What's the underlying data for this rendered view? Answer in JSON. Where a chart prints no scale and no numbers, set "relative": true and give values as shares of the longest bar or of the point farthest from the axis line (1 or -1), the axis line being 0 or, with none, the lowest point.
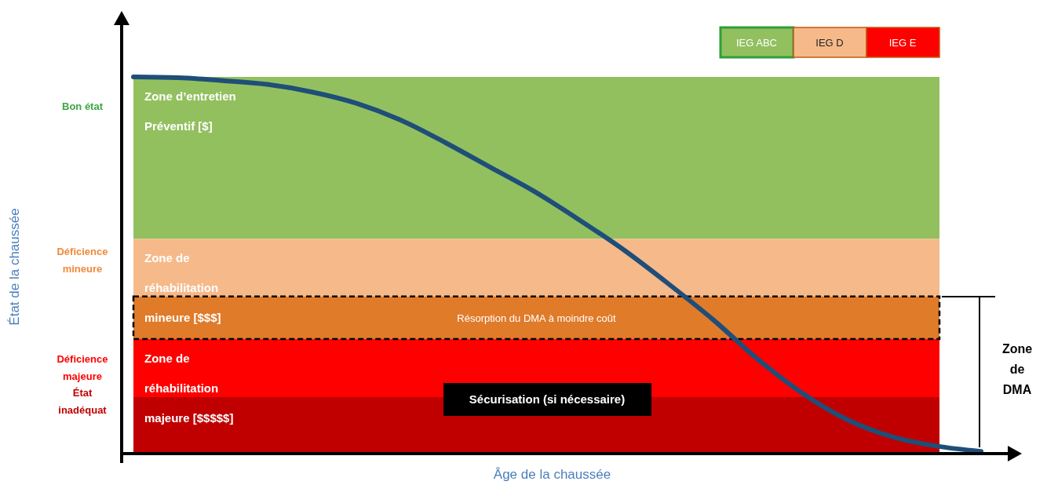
{
  "chart_data": {
    "type": "line",
    "relative": true,
    "xlabel": "Âge de la chaussée",
    "categories": [
      null,
      null,
      null,
      null,
      null,
      null,
      null,
      null,
      null,
      null,
      null,
      null,
      null,
      null,
      null,
      null,
      null,
      null,
      null,
      null
    ],
    "series": [
      {
        "color": "#1f4e79",
        "values": [
          1.0,
          0.998,
          0.99,
          0.98,
          0.96,
          0.93,
          0.885,
          0.825,
          0.76,
          0.695,
          0.62,
          0.54,
          0.45,
          0.355,
          0.25,
          0.16,
          0.09,
          0.045,
          0.02,
          0.006
        ]
      }
    ],
    "bands": [
      {
        "axis": "y",
        "from": 0.57,
        "to": 1.0,
        "label": "Zone d’entretien Préventif [$]",
        "color": "#92c05f"
      },
      {
        "axis": "y",
        "from": 0.417,
        "to": 0.57,
        "label": "Zone de réhabilitation mineure [$$$]",
        "color": "#f6b98a"
      },
      {
        "axis": "y",
        "from": 0.304,
        "to": 0.417,
        "label": "Résorption du DMA à moindre coût",
        "color": "#e07b2a"
      },
      {
        "axis": "y",
        "from": 0.15,
        "to": 0.304,
        "label": "Zone de réhabilitation majeure [$$$$$]",
        "color": "#ff0000"
      },
      {
        "axis": "y",
        "from": 0.0,
        "to": 0.15,
        "color": "#c00000"
      }
    ],
    "annotations": [
      "Bon état",
      "Déficience mineure",
      "Déficience majeure",
      "État inadéquat",
      "IEG ABC",
      "IEG D",
      "IEG E",
      "Zone de DMA",
      "Sécurisation (si nécessaire)",
      "État de la chaussée"
    ],
    "line_style": "solid"
  }
}
